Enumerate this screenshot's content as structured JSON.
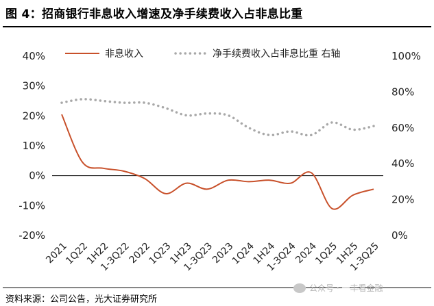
{
  "title": "图 4：招商银行非息收入增速及净手续费收入占非息比重",
  "source": "资料来源：公司公告，光大证券研究所",
  "watermark": "公众号 · 一丰看金融",
  "chart_data": {
    "type": "line",
    "categories": [
      "2021",
      "1Q22",
      "1H22",
      "1-3Q22",
      "2022",
      "1Q23",
      "1H23",
      "1-3Q23",
      "2023",
      "1Q24",
      "1H24",
      "1-3Q24",
      "2024",
      "1Q25",
      "1H25",
      "1-3Q25"
    ],
    "series": [
      {
        "name": "非息收入",
        "axis": "left",
        "color": "#c8502a",
        "style": "solid",
        "values": [
          20.5,
          4.5,
          2.5,
          1.5,
          -1.0,
          -6.0,
          -2.5,
          -4.5,
          -1.5,
          -2.0,
          -1.5,
          -2.5,
          1.0,
          -11.0,
          -6.5,
          -4.5
        ]
      },
      {
        "name": "净手续费收入占非息比重 右轴",
        "axis": "right",
        "color": "#a8a8a8",
        "style": "dotted",
        "values": [
          74,
          76,
          75,
          74,
          74,
          71,
          67,
          68,
          67,
          60,
          56,
          58,
          56,
          63,
          59,
          61
        ]
      }
    ],
    "left_axis": {
      "ylim": [
        -20,
        40
      ],
      "ticks": [
        "-20%",
        "-10%",
        "0%",
        "10%",
        "20%",
        "30%",
        "40%"
      ]
    },
    "right_axis": {
      "ylim": [
        0,
        100
      ],
      "ticks": [
        "0%",
        "20%",
        "40%",
        "60%",
        "80%",
        "100%"
      ]
    },
    "legend_position": "top",
    "grid": false
  }
}
